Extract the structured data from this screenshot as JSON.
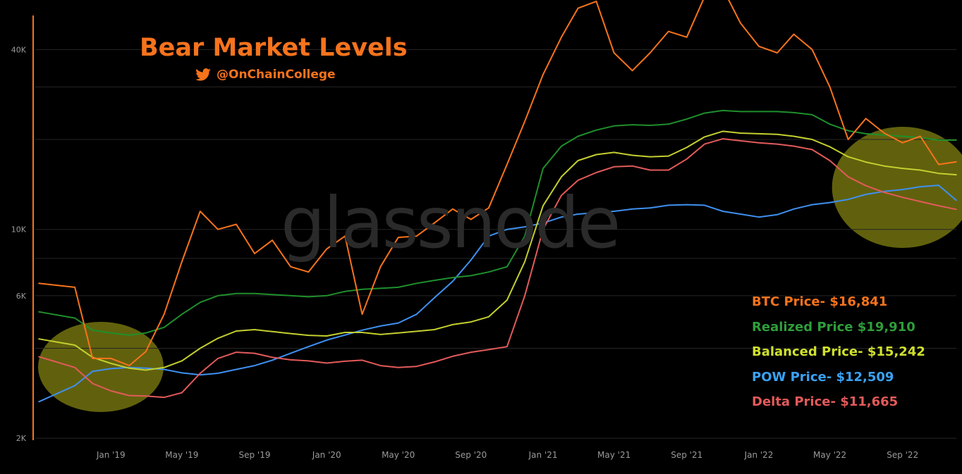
{
  "header": {
    "title": "Bear Market Levels",
    "handle": "@OnChainCollege",
    "watermark": "glassnode"
  },
  "colors": {
    "background": "#000000",
    "btc": "#f7731c",
    "realized": "#1f8f2c",
    "balanced": "#c3cf2f",
    "pow": "#3f90f0",
    "delta": "#e35a5a",
    "highlight": "#8a8a12"
  },
  "legend": [
    {
      "label": "BTC Price- $16,841",
      "color": "#f7731c"
    },
    {
      "label": "Realized Price $19,910",
      "color": "#2e9e3a"
    },
    {
      "label": "Balanced Price- $15,242",
      "color": "#cfe12c"
    },
    {
      "label": "POW Price- $12,509",
      "color": "#3aa2f5"
    },
    {
      "label": "Delta Price- $11,665",
      "color": "#e35a5a"
    }
  ],
  "chart_data": {
    "type": "line",
    "title": "Bear Market Levels",
    "y_scale": "log",
    "ylim": [
      1970,
      52000
    ],
    "y_ticks": [
      {
        "value": 2000,
        "label": "2K"
      },
      {
        "value": 6000,
        "label": "6K"
      },
      {
        "value": 10000,
        "label": "10K"
      },
      {
        "value": 40000,
        "label": "40K"
      }
    ],
    "x_ticks": [
      "Jan '19",
      "May '19",
      "Sep '19",
      "Jan '20",
      "May '20",
      "Sep '20",
      "Jan '21",
      "May '21",
      "Sep '21",
      "Jan '22",
      "May '22",
      "Sep '22"
    ],
    "x": [
      "2018-09-01",
      "2018-11-01",
      "2018-12-01",
      "2019-01-01",
      "2019-02-01",
      "2019-03-01",
      "2019-04-01",
      "2019-05-01",
      "2019-06-01",
      "2019-07-01",
      "2019-08-01",
      "2019-09-01",
      "2019-10-01",
      "2019-11-01",
      "2019-12-01",
      "2020-01-01",
      "2020-02-01",
      "2020-03-01",
      "2020-04-01",
      "2020-05-01",
      "2020-06-01",
      "2020-07-01",
      "2020-08-01",
      "2020-09-01",
      "2020-10-01",
      "2020-11-01",
      "2020-12-01",
      "2021-01-01",
      "2021-02-01",
      "2021-03-01",
      "2021-04-01",
      "2021-05-01",
      "2021-06-01",
      "2021-07-01",
      "2021-08-01",
      "2021-09-01",
      "2021-10-01",
      "2021-11-01",
      "2021-12-01",
      "2022-01-01",
      "2022-02-01",
      "2022-03-01",
      "2022-04-01",
      "2022-05-01",
      "2022-06-01",
      "2022-07-01",
      "2022-08-01",
      "2022-09-01",
      "2022-10-01",
      "2022-11-01",
      "2022-12-01"
    ],
    "series": [
      {
        "name": "BTC Price",
        "color": "#f7731c",
        "values": [
          6600,
          6400,
          3700,
          3700,
          3500,
          3900,
          5200,
          7800,
          11500,
          10000,
          10400,
          8300,
          9200,
          7500,
          7200,
          8600,
          9500,
          5200,
          7500,
          9400,
          9500,
          10500,
          11700,
          10800,
          11800,
          16500,
          23000,
          33000,
          44000,
          55000,
          58000,
          39000,
          34000,
          39000,
          46000,
          44000,
          60000,
          64000,
          49000,
          41000,
          39000,
          45000,
          40000,
          30000,
          20000,
          23500,
          21000,
          19500,
          20500,
          16500,
          16841
        ]
      },
      {
        "name": "Realized Price",
        "color": "#1f8f2c",
        "values": [
          5300,
          5050,
          4600,
          4500,
          4430,
          4500,
          4700,
          5200,
          5700,
          6000,
          6100,
          6100,
          6050,
          6000,
          5950,
          6000,
          6200,
          6300,
          6350,
          6400,
          6600,
          6750,
          6900,
          7000,
          7200,
          7500,
          9500,
          16000,
          19000,
          20500,
          21500,
          22200,
          22400,
          22300,
          22500,
          23400,
          24500,
          25000,
          24800,
          24800,
          24800,
          24600,
          24200,
          22500,
          21400,
          20900,
          20700,
          20500,
          20300,
          19900,
          19910
        ]
      },
      {
        "name": "Balanced Price",
        "color": "#c3cf2f",
        "values": [
          4300,
          4100,
          3730,
          3560,
          3430,
          3380,
          3450,
          3630,
          4000,
          4320,
          4570,
          4620,
          4550,
          4480,
          4420,
          4400,
          4520,
          4520,
          4450,
          4500,
          4560,
          4620,
          4800,
          4900,
          5100,
          5800,
          7800,
          12000,
          15000,
          17000,
          17800,
          18100,
          17700,
          17500,
          17600,
          18800,
          20400,
          21300,
          21000,
          20900,
          20800,
          20500,
          20000,
          18900,
          17500,
          16800,
          16300,
          16000,
          15800,
          15400,
          15242
        ]
      },
      {
        "name": "POW Price",
        "color": "#3f90f0",
        "values": [
          2650,
          3000,
          3350,
          3420,
          3450,
          3430,
          3400,
          3310,
          3260,
          3300,
          3400,
          3500,
          3650,
          3850,
          4050,
          4260,
          4430,
          4600,
          4750,
          4860,
          5200,
          5900,
          6700,
          7900,
          9500,
          10000,
          10200,
          10500,
          11000,
          11250,
          11380,
          11500,
          11700,
          11800,
          12050,
          12100,
          12050,
          11500,
          11250,
          11000,
          11200,
          11700,
          12100,
          12300,
          12600,
          13100,
          13400,
          13600,
          13900,
          14050,
          12509
        ]
      },
      {
        "name": "Delta Price",
        "color": "#e35a5a",
        "values": [
          3750,
          3450,
          3050,
          2880,
          2780,
          2770,
          2740,
          2840,
          3300,
          3700,
          3880,
          3850,
          3730,
          3660,
          3630,
          3570,
          3620,
          3650,
          3500,
          3450,
          3480,
          3600,
          3760,
          3880,
          3960,
          4050,
          6000,
          10000,
          13000,
          14600,
          15500,
          16200,
          16300,
          15800,
          15800,
          17200,
          19300,
          20100,
          19800,
          19500,
          19300,
          19000,
          18500,
          17000,
          15000,
          14000,
          13300,
          12800,
          12400,
          12000,
          11665
        ]
      }
    ]
  }
}
